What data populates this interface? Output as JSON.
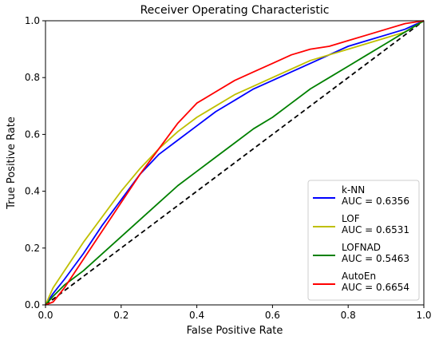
{
  "chart_data": {
    "type": "line",
    "title": "Receiver Operating Characteristic",
    "xlabel": "False Positive Rate",
    "ylabel": "True Positive Rate",
    "xlim": [
      0,
      1
    ],
    "ylim": [
      0,
      1
    ],
    "xticks": [
      "0.0",
      "0.2",
      "0.4",
      "0.6",
      "0.8",
      "1.0"
    ],
    "yticks": [
      "0.0",
      "0.2",
      "0.4",
      "0.6",
      "0.8",
      "1.0"
    ],
    "grid": false,
    "legend_position": "lower-right",
    "reference_line": {
      "style": "dashed",
      "color": "#000000",
      "x": [
        0,
        1
      ],
      "y": [
        0,
        1
      ]
    },
    "series": [
      {
        "name": "k-NN",
        "auc_label": "AUC = 0.6356",
        "color": "#0000ff",
        "x": [
          0,
          0.02,
          0.05,
          0.1,
          0.15,
          0.2,
          0.25,
          0.3,
          0.35,
          0.4,
          0.45,
          0.5,
          0.55,
          0.6,
          0.65,
          0.7,
          0.75,
          0.8,
          0.85,
          0.9,
          0.95,
          1.0
        ],
        "y": [
          0,
          0.04,
          0.09,
          0.18,
          0.28,
          0.37,
          0.46,
          0.53,
          0.58,
          0.63,
          0.68,
          0.72,
          0.76,
          0.79,
          0.82,
          0.85,
          0.88,
          0.91,
          0.93,
          0.95,
          0.97,
          1.0
        ]
      },
      {
        "name": "LOF",
        "auc_label": "AUC = 0.6531",
        "color": "#bfbf00",
        "x": [
          0,
          0.02,
          0.05,
          0.1,
          0.15,
          0.2,
          0.25,
          0.3,
          0.35,
          0.4,
          0.45,
          0.5,
          0.55,
          0.6,
          0.65,
          0.7,
          0.75,
          0.8,
          0.85,
          0.9,
          0.95,
          1.0
        ],
        "y": [
          0,
          0.06,
          0.12,
          0.22,
          0.31,
          0.4,
          0.48,
          0.55,
          0.61,
          0.66,
          0.7,
          0.74,
          0.77,
          0.8,
          0.83,
          0.86,
          0.88,
          0.9,
          0.92,
          0.94,
          0.96,
          1.0
        ]
      },
      {
        "name": "LOFNAD",
        "auc_label": "AUC = 0.5463",
        "color": "#008000",
        "x": [
          0,
          0.02,
          0.05,
          0.1,
          0.15,
          0.2,
          0.25,
          0.3,
          0.35,
          0.4,
          0.45,
          0.5,
          0.55,
          0.6,
          0.65,
          0.7,
          0.75,
          0.8,
          0.85,
          0.9,
          0.95,
          1.0
        ],
        "y": [
          0,
          0.03,
          0.07,
          0.12,
          0.18,
          0.24,
          0.3,
          0.36,
          0.42,
          0.47,
          0.52,
          0.57,
          0.62,
          0.66,
          0.71,
          0.76,
          0.8,
          0.84,
          0.88,
          0.92,
          0.96,
          1.0
        ]
      },
      {
        "name": "AutoEn",
        "auc_label": "AUC = 0.6654",
        "color": "#ff0000",
        "x": [
          0,
          0.02,
          0.05,
          0.1,
          0.15,
          0.2,
          0.25,
          0.3,
          0.35,
          0.4,
          0.45,
          0.5,
          0.55,
          0.6,
          0.65,
          0.7,
          0.75,
          0.8,
          0.85,
          0.9,
          0.95,
          1.0
        ],
        "y": [
          0,
          0.01,
          0.06,
          0.16,
          0.26,
          0.36,
          0.46,
          0.55,
          0.64,
          0.71,
          0.75,
          0.79,
          0.82,
          0.85,
          0.88,
          0.9,
          0.91,
          0.93,
          0.95,
          0.97,
          0.99,
          1.0
        ]
      }
    ]
  }
}
